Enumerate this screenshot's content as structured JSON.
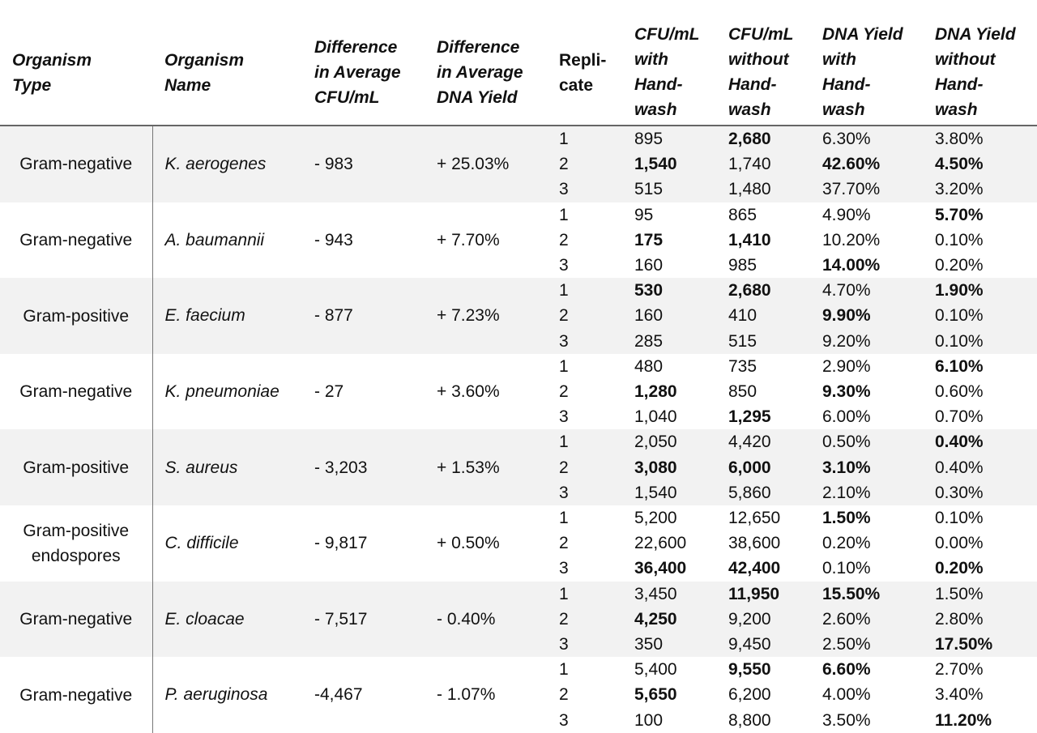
{
  "headers": [
    "Organism Type",
    "Organism Name",
    "Difference in Average CFU/mL",
    "Difference in Average DNA Yield",
    "Repli-cate",
    "CFU/mL with Hand-wash",
    "CFU/mL without Hand-wash",
    "DNA Yield with Hand-wash",
    "DNA Yield without Hand-wash"
  ],
  "header_lines": [
    [
      "Organism",
      "Type"
    ],
    [
      "Organism",
      "Name"
    ],
    [
      "Difference",
      "in Average",
      "CFU/mL"
    ],
    [
      "Difference",
      "in Average",
      "DNA Yield"
    ],
    [
      "Repli-",
      "cate"
    ],
    [
      "CFU/mL",
      "with",
      "Hand-",
      "wash"
    ],
    [
      "CFU/mL",
      "without",
      "Hand-",
      "wash"
    ],
    [
      "DNA Yield",
      "with",
      "Hand-",
      "wash"
    ],
    [
      "DNA Yield",
      "without",
      "Hand-",
      "wash"
    ]
  ],
  "groups": [
    {
      "type": "Gram-negative",
      "name": "K. aerogenes",
      "diff_cfu": "- 983",
      "diff_dna": "+ 25.03%",
      "rows": [
        {
          "replicate": "1",
          "cfu_with": "895",
          "cfu_without": "2,680",
          "dna_with": "6.30%",
          "dna_without": "3.80%",
          "bold": [
            "cfu_without"
          ]
        },
        {
          "replicate": "2",
          "cfu_with": "1,540",
          "cfu_without": "1,740",
          "dna_with": "42.60%",
          "dna_without": "4.50%",
          "bold": [
            "cfu_with",
            "dna_with",
            "dna_without"
          ]
        },
        {
          "replicate": "3",
          "cfu_with": "515",
          "cfu_without": "1,480",
          "dna_with": "37.70%",
          "dna_without": "3.20%",
          "bold": []
        }
      ]
    },
    {
      "type": "Gram-negative",
      "name": "A. baumannii",
      "diff_cfu": "- 943",
      "diff_dna": "+ 7.70%",
      "rows": [
        {
          "replicate": "1",
          "cfu_with": "95",
          "cfu_without": "865",
          "dna_with": "4.90%",
          "dna_without": "5.70%",
          "bold": [
            "dna_without"
          ]
        },
        {
          "replicate": "2",
          "cfu_with": "175",
          "cfu_without": "1,410",
          "dna_with": "10.20%",
          "dna_without": "0.10%",
          "bold": [
            "cfu_with",
            "cfu_without"
          ]
        },
        {
          "replicate": "3",
          "cfu_with": "160",
          "cfu_without": "985",
          "dna_with": "14.00%",
          "dna_without": "0.20%",
          "bold": [
            "dna_with"
          ]
        }
      ]
    },
    {
      "type": "Gram-positive",
      "name": "E. faecium",
      "diff_cfu": "- 877",
      "diff_dna": "+ 7.23%",
      "rows": [
        {
          "replicate": "1",
          "cfu_with": "530",
          "cfu_without": "2,680",
          "dna_with": "4.70%",
          "dna_without": "1.90%",
          "bold": [
            "cfu_with",
            "cfu_without",
            "dna_without"
          ]
        },
        {
          "replicate": "2",
          "cfu_with": "160",
          "cfu_without": "410",
          "dna_with": "9.90%",
          "dna_without": "0.10%",
          "bold": [
            "dna_with"
          ]
        },
        {
          "replicate": "3",
          "cfu_with": "285",
          "cfu_without": "515",
          "dna_with": "9.20%",
          "dna_without": "0.10%",
          "bold": []
        }
      ]
    },
    {
      "type": "Gram-negative",
      "name": "K. pneumoniae",
      "diff_cfu": "- 27",
      "diff_dna": "+ 3.60%",
      "rows": [
        {
          "replicate": "1",
          "cfu_with": "480",
          "cfu_without": "735",
          "dna_with": "2.90%",
          "dna_without": "6.10%",
          "bold": [
            "dna_without"
          ]
        },
        {
          "replicate": "2",
          "cfu_with": "1,280",
          "cfu_without": "850",
          "dna_with": "9.30%",
          "dna_without": "0.60%",
          "bold": [
            "cfu_with",
            "dna_with"
          ]
        },
        {
          "replicate": "3",
          "cfu_with": "1,040",
          "cfu_without": "1,295",
          "dna_with": "6.00%",
          "dna_without": "0.70%",
          "bold": [
            "cfu_without"
          ]
        }
      ]
    },
    {
      "type": "Gram-positive",
      "name": "S. aureus",
      "diff_cfu": "- 3,203",
      "diff_dna": "+ 1.53%",
      "rows": [
        {
          "replicate": "1",
          "cfu_with": "2,050",
          "cfu_without": "4,420",
          "dna_with": "0.50%",
          "dna_without": "0.40%",
          "bold": [
            "dna_without"
          ]
        },
        {
          "replicate": "2",
          "cfu_with": "3,080",
          "cfu_without": "6,000",
          "dna_with": "3.10%",
          "dna_without": "0.40%",
          "bold": [
            "cfu_with",
            "cfu_without",
            "dna_with"
          ]
        },
        {
          "replicate": "3",
          "cfu_with": "1,540",
          "cfu_without": "5,860",
          "dna_with": "2.10%",
          "dna_without": "0.30%",
          "bold": []
        }
      ]
    },
    {
      "type": "Gram-positive endospores",
      "name": "C. difficile",
      "diff_cfu": "- 9,817",
      "diff_dna": "+ 0.50%",
      "rows": [
        {
          "replicate": "1",
          "cfu_with": "5,200",
          "cfu_without": "12,650",
          "dna_with": "1.50%",
          "dna_without": "0.10%",
          "bold": [
            "dna_with"
          ]
        },
        {
          "replicate": "2",
          "cfu_with": "22,600",
          "cfu_without": "38,600",
          "dna_with": "0.20%",
          "dna_without": "0.00%",
          "bold": []
        },
        {
          "replicate": "3",
          "cfu_with": "36,400",
          "cfu_without": "42,400",
          "dna_with": "0.10%",
          "dna_without": "0.20%",
          "bold": [
            "cfu_with",
            "cfu_without",
            "dna_without"
          ]
        }
      ]
    },
    {
      "type": "Gram-negative",
      "name": "E. cloacae",
      "diff_cfu": "- 7,517",
      "diff_dna": "- 0.40%",
      "rows": [
        {
          "replicate": "1",
          "cfu_with": "3,450",
          "cfu_without": "11,950",
          "dna_with": "15.50%",
          "dna_without": "1.50%",
          "bold": [
            "cfu_without",
            "dna_with"
          ]
        },
        {
          "replicate": "2",
          "cfu_with": "4,250",
          "cfu_without": "9,200",
          "dna_with": "2.60%",
          "dna_without": "2.80%",
          "bold": [
            "cfu_with"
          ]
        },
        {
          "replicate": "3",
          "cfu_with": "350",
          "cfu_without": "9,450",
          "dna_with": "2.50%",
          "dna_without": "17.50%",
          "bold": [
            "dna_without"
          ]
        }
      ]
    },
    {
      "type": "Gram-negative",
      "name": "P. aeruginosa",
      "diff_cfu": "-4,467",
      "diff_dna": "- 1.07%",
      "rows": [
        {
          "replicate": "1",
          "cfu_with": "5,400",
          "cfu_without": "9,550",
          "dna_with": "6.60%",
          "dna_without": "2.70%",
          "bold": [
            "cfu_without",
            "dna_with"
          ]
        },
        {
          "replicate": "2",
          "cfu_with": "5,650",
          "cfu_without": "6,200",
          "dna_with": "4.00%",
          "dna_without": "3.40%",
          "bold": [
            "cfu_with"
          ]
        },
        {
          "replicate": "3",
          "cfu_with": "100",
          "cfu_without": "8,800",
          "dna_with": "3.50%",
          "dna_without": "11.20%",
          "bold": [
            "dna_without"
          ]
        }
      ]
    }
  ]
}
